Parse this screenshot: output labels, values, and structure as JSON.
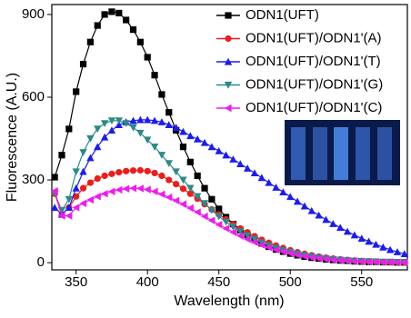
{
  "chart_data": {
    "type": "line",
    "x_label": "Wavelength (nm)",
    "y_label": "Fluorescence (A.U.)",
    "x": [
      335,
      340,
      345,
      350,
      355,
      360,
      365,
      370,
      375,
      380,
      385,
      390,
      395,
      400,
      405,
      410,
      415,
      420,
      425,
      430,
      435,
      440,
      445,
      450,
      455,
      460,
      465,
      470,
      475,
      480,
      485,
      490,
      495,
      500,
      505,
      510,
      515,
      520,
      525,
      530,
      535,
      540,
      545,
      550,
      555,
      560,
      565,
      570,
      575,
      580
    ],
    "series": [
      {
        "name": "ODN1(UFT)",
        "color": "#000000",
        "marker": "square",
        "values": [
          310,
          390,
          485,
          620,
          720,
          800,
          860,
          900,
          910,
          905,
          880,
          845,
          800,
          745,
          680,
          610,
          545,
          480,
          420,
          365,
          315,
          270,
          230,
          195,
          165,
          140,
          118,
          99,
          83,
          70,
          58,
          48,
          40,
          33,
          27,
          22,
          18,
          15,
          12,
          10,
          8,
          7,
          5,
          4,
          3,
          3,
          2,
          2,
          1,
          1
        ]
      },
      {
        "name": "ODN1(UFT)/ODN1'(A)",
        "color": "#ee1c1c",
        "marker": "circle",
        "values": [
          250,
          175,
          200,
          240,
          270,
          290,
          305,
          315,
          322,
          328,
          332,
          334,
          335,
          332,
          325,
          315,
          300,
          285,
          268,
          250,
          232,
          212,
          193,
          175,
          157,
          140,
          124,
          110,
          96,
          83,
          72,
          62,
          53,
          45,
          38,
          32,
          27,
          22,
          18,
          15,
          12,
          10,
          8,
          6,
          5,
          4,
          3,
          2,
          2,
          1
        ]
      },
      {
        "name": "ODN1(UFT)/ODN1'(T)",
        "color": "#1c1cee",
        "marker": "triangle-up",
        "values": [
          200,
          175,
          200,
          270,
          330,
          380,
          420,
          455,
          480,
          500,
          510,
          515,
          518,
          518,
          515,
          510,
          500,
          490,
          475,
          460,
          448,
          435,
          420,
          405,
          390,
          375,
          358,
          342,
          325,
          308,
          290,
          273,
          256,
          239,
          222,
          205,
          188,
          172,
          156,
          141,
          127,
          113,
          100,
          88,
          77,
          66,
          56,
          47,
          39,
          32
        ]
      },
      {
        "name": "ODN1(UFT)/ODN1'(G)",
        "color": "#2a8a8a",
        "marker": "triangle-down",
        "values": [
          250,
          190,
          230,
          330,
          400,
          450,
          485,
          505,
          515,
          515,
          505,
          490,
          470,
          445,
          420,
          390,
          360,
          330,
          300,
          270,
          240,
          215,
          190,
          168,
          148,
          130,
          113,
          98,
          85,
          73,
          62,
          53,
          45,
          38,
          32,
          27,
          22,
          18,
          15,
          12,
          10,
          8,
          6,
          5,
          4,
          3,
          2,
          2,
          1,
          1
        ]
      },
      {
        "name": "ODN1(UFT)/ODN1'(C)",
        "color": "#ee1cee",
        "marker": "triangle-left",
        "values": [
          260,
          170,
          170,
          200,
          215,
          228,
          240,
          250,
          258,
          264,
          268,
          270,
          269,
          265,
          258,
          248,
          237,
          225,
          212,
          198,
          183,
          168,
          153,
          138,
          124,
          110,
          97,
          85,
          74,
          64,
          55,
          47,
          40,
          34,
          28,
          23,
          19,
          16,
          13,
          10,
          8,
          7,
          5,
          4,
          3,
          3,
          2,
          2,
          1,
          1
        ]
      }
    ],
    "xlim": [
      333,
      582
    ],
    "xticks": [
      350,
      400,
      450,
      500,
      550
    ],
    "ylim": [
      -26,
      936
    ],
    "yticks": [
      0,
      300,
      600,
      900
    ],
    "legend": "top-right"
  }
}
